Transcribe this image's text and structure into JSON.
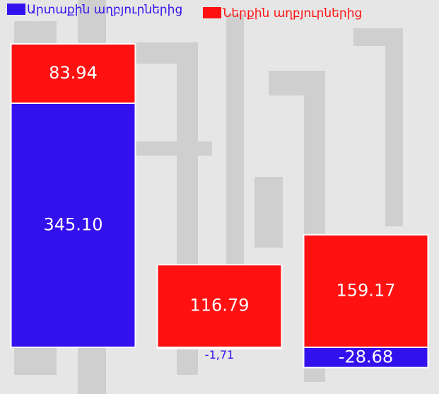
{
  "chart_data": {
    "type": "stacked-bar",
    "categories": [
      null,
      null,
      null
    ],
    "series": [
      {
        "name": "Արտաքին աղբյուրներից",
        "color": "#3311ee",
        "values": [
          345.1,
          -1.71,
          -28.68
        ],
        "value_labels": [
          "345.10",
          "-1,71",
          "-28.68"
        ]
      },
      {
        "name": "Ներքին աղբյուրներից",
        "color": "#ff1111",
        "values": [
          83.94,
          116.79,
          159.17
        ],
        "value_labels": [
          "83.94",
          "116.79",
          "159.17"
        ]
      }
    ],
    "ylim": [
      -66,
      436
    ]
  }
}
